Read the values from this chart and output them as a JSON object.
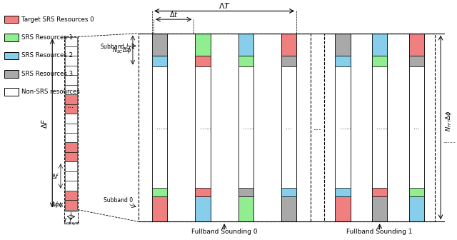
{
  "colors": {
    "srs0": "#F08080",
    "srs1": "#90EE90",
    "srs2": "#87CEEB",
    "srs3": "#A9A9A9",
    "non_srs": "#FFFFFF",
    "bg": "#FFFFFF"
  },
  "legend_items": [
    {
      "label": "Target SRS Resources 0",
      "color": "#F08080"
    },
    {
      "label": "SRS Resources 1",
      "color": "#90EE90"
    },
    {
      "label": "SRS Resources 2",
      "color": "#87CEEB"
    },
    {
      "label": "SRS Resources 3",
      "color": "#A9A9A9"
    },
    {
      "label": "Non-SRS resources",
      "color": "#FFFFFF"
    }
  ],
  "fb0_cols": [
    [
      "#A9A9A9",
      "#87CEEB",
      "#90EE90",
      "#F08080"
    ],
    [
      "#90EE90",
      "#F08080",
      "#F08080",
      "#87CEEB"
    ],
    [
      "#87CEEB",
      "#90EE90",
      "#A9A9A9",
      "#90EE90"
    ],
    [
      "#F08080",
      "#A9A9A9",
      "#87CEEB",
      "#A9A9A9"
    ]
  ],
  "fb1_cols": [
    [
      "#A9A9A9",
      "#87CEEB",
      "#90EE90",
      "#F08080"
    ],
    [
      "#87CEEB",
      "#90EE90",
      "#F08080",
      "#A9A9A9"
    ],
    [
      "#F08080",
      "#A9A9A9",
      "#87CEEB",
      "#90EE90"
    ]
  ]
}
